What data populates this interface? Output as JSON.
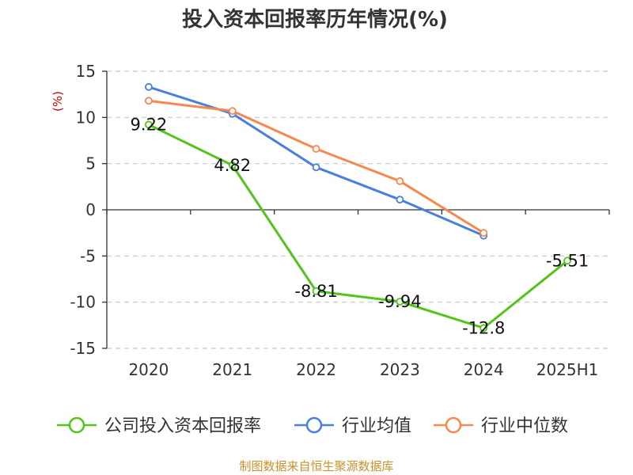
{
  "chart_data": {
    "type": "line",
    "title": "投入资本回报率历年情况(%)",
    "ylabel": "(%)",
    "xlabel": "",
    "categories": [
      "2020",
      "2021",
      "2022",
      "2023",
      "2024",
      "2025H1"
    ],
    "ylim": [
      -15,
      15
    ],
    "yticks": [
      15,
      10,
      5,
      0,
      -5,
      -10,
      -15
    ],
    "grid": true,
    "legend_position": "bottom",
    "series": [
      {
        "name": "公司投入资本回报率",
        "color": "#52c41a",
        "values": [
          9.22,
          4.82,
          -8.81,
          -9.94,
          -12.8,
          -5.51
        ],
        "labels": [
          "9.22",
          "4.82",
          "-8.81",
          "-9.94",
          "-12.8",
          "-5.51"
        ]
      },
      {
        "name": "行业均值",
        "color": "#4a7fdb",
        "values": [
          13.3,
          10.4,
          4.6,
          1.1,
          -2.8,
          null
        ]
      },
      {
        "name": "行业中位数",
        "color": "#f5894f",
        "values": [
          11.8,
          10.7,
          6.6,
          3.1,
          -2.5,
          null
        ]
      }
    ]
  },
  "source": "制图数据来自恒生聚源数据库"
}
